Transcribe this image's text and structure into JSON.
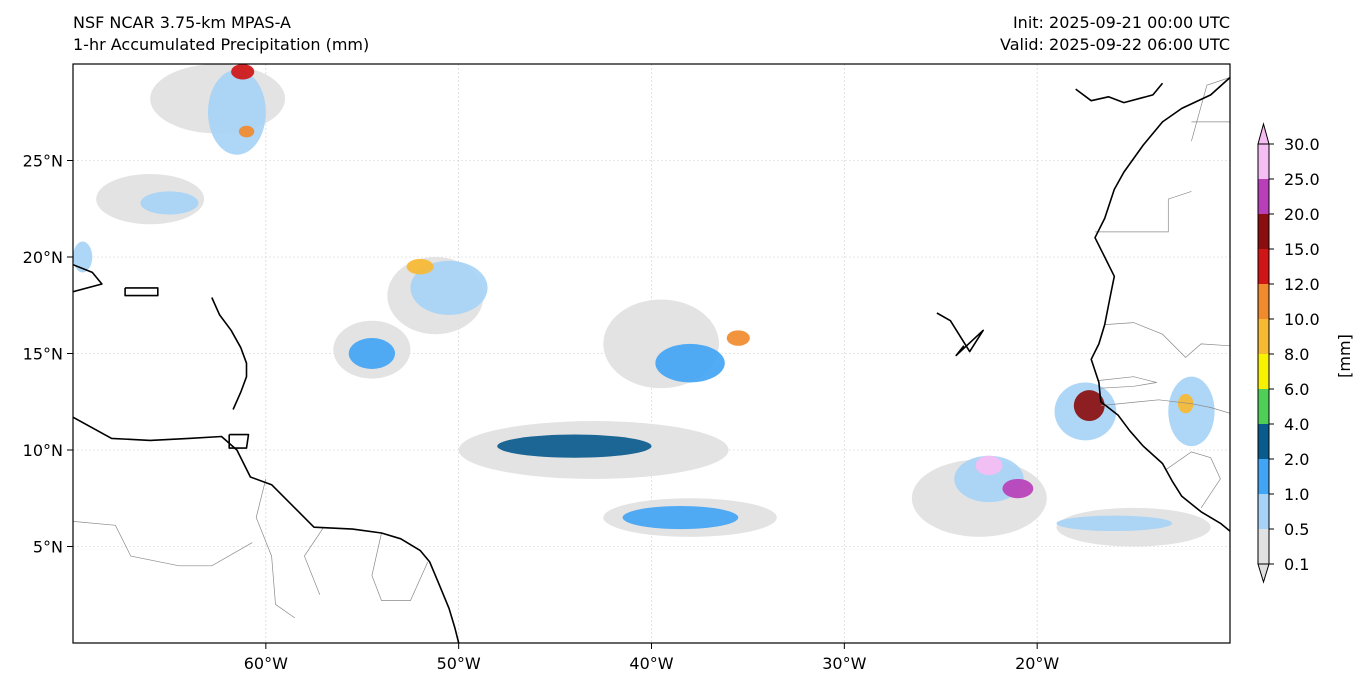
{
  "header": {
    "model": "NSF NCAR 3.75-km MPAS-A",
    "field": "1-hr Accumulated Precipitation (mm)",
    "init": "Init: 2025-09-21 00:00 UTC",
    "valid": "Valid: 2025-09-22 06:00 UTC"
  },
  "map": {
    "lon_range": [
      -70,
      -10
    ],
    "lat_range": [
      0,
      30
    ],
    "lon_ticks": [
      {
        "value": -60,
        "label": "60°W"
      },
      {
        "value": -50,
        "label": "50°W"
      },
      {
        "value": -40,
        "label": "40°W"
      },
      {
        "value": -30,
        "label": "30°W"
      },
      {
        "value": -20,
        "label": "20°W"
      }
    ],
    "lat_ticks": [
      {
        "value": 25,
        "label": "25°N"
      },
      {
        "value": 20,
        "label": "20°N"
      },
      {
        "value": 15,
        "label": "15°N"
      },
      {
        "value": 10,
        "label": "10°N"
      },
      {
        "value": 5,
        "label": "5°N"
      }
    ],
    "gridlines": true
  },
  "colorbar": {
    "unit_label": "[mm]",
    "levels": [
      {
        "label": "0.1",
        "color": "#e1e1e1"
      },
      {
        "label": "0.5",
        "color": "#a6d2f6"
      },
      {
        "label": "1.0",
        "color": "#42a4f4"
      },
      {
        "label": "2.0",
        "color": "#0a5b8d"
      },
      {
        "label": "4.0",
        "color": "#4fcf58"
      },
      {
        "label": "6.0",
        "color": "#f8f200"
      },
      {
        "label": "8.0",
        "color": "#f7b832"
      },
      {
        "label": "10.0",
        "color": "#f18a2d"
      },
      {
        "label": "12.0",
        "color": "#cf1515"
      },
      {
        "label": "15.0",
        "color": "#8a0e0e"
      },
      {
        "label": "20.0",
        "color": "#b93fb8"
      },
      {
        "label": "25.0",
        "color": "#f6bdf3"
      },
      {
        "label": "30.0",
        "color": "#f6bdf3"
      }
    ]
  },
  "precip_areas": [
    {
      "lon": -66,
      "lat": 23.0,
      "rlon": 2.8,
      "rlat": 1.3,
      "level": 0
    },
    {
      "lon": -65,
      "lat": 22.8,
      "rlon": 1.5,
      "rlat": 0.6,
      "level": 1
    },
    {
      "lon": -62.5,
      "lat": 28.2,
      "rlon": 3.5,
      "rlat": 1.8,
      "level": 0
    },
    {
      "lon": -61.5,
      "lat": 27.5,
      "rlon": 1.5,
      "rlat": 2.2,
      "level": 1
    },
    {
      "lon": -61.2,
      "lat": 29.6,
      "rlon": 0.6,
      "rlat": 0.4,
      "level": 8
    },
    {
      "lon": -61.0,
      "lat": 26.5,
      "rlon": 0.4,
      "rlat": 0.3,
      "level": 7
    },
    {
      "lon": -51.2,
      "lat": 18.0,
      "rlon": 2.5,
      "rlat": 2.0,
      "level": 0
    },
    {
      "lon": -50.5,
      "lat": 18.4,
      "rlon": 2.0,
      "rlat": 1.4,
      "level": 1
    },
    {
      "lon": -52.0,
      "lat": 19.5,
      "rlon": 0.7,
      "rlat": 0.4,
      "level": 6
    },
    {
      "lon": -54.5,
      "lat": 15.2,
      "rlon": 2.0,
      "rlat": 1.5,
      "level": 0
    },
    {
      "lon": -54.5,
      "lat": 15.0,
      "rlon": 1.2,
      "rlat": 0.8,
      "level": 2
    },
    {
      "lon": -39.5,
      "lat": 15.5,
      "rlon": 3.0,
      "rlat": 2.3,
      "level": 0
    },
    {
      "lon": -38.0,
      "lat": 14.5,
      "rlon": 1.8,
      "rlat": 1.0,
      "level": 2
    },
    {
      "lon": -35.5,
      "lat": 15.8,
      "rlon": 0.6,
      "rlat": 0.4,
      "level": 7
    },
    {
      "lon": -43.0,
      "lat": 10.0,
      "rlon": 7.0,
      "rlat": 1.5,
      "level": 0
    },
    {
      "lon": -44.0,
      "lat": 10.2,
      "rlon": 4.0,
      "rlat": 0.6,
      "level": 3
    },
    {
      "lon": -38.0,
      "lat": 6.5,
      "rlon": 4.5,
      "rlat": 1.0,
      "level": 0
    },
    {
      "lon": -38.5,
      "lat": 6.5,
      "rlon": 3.0,
      "rlat": 0.6,
      "level": 2
    },
    {
      "lon": -23.0,
      "lat": 7.5,
      "rlon": 3.5,
      "rlat": 2.0,
      "level": 0
    },
    {
      "lon": -22.5,
      "lat": 8.5,
      "rlon": 1.8,
      "rlat": 1.2,
      "level": 1
    },
    {
      "lon": -22.5,
      "lat": 9.2,
      "rlon": 0.7,
      "rlat": 0.5,
      "level": 11
    },
    {
      "lon": -21.0,
      "lat": 8.0,
      "rlon": 0.8,
      "rlat": 0.5,
      "level": 10
    },
    {
      "lon": -17.5,
      "lat": 12.0,
      "rlon": 1.6,
      "rlat": 1.5,
      "level": 1
    },
    {
      "lon": -17.3,
      "lat": 12.3,
      "rlon": 0.8,
      "rlat": 0.8,
      "level": 9
    },
    {
      "lon": -12.0,
      "lat": 12.0,
      "rlon": 1.2,
      "rlat": 1.8,
      "level": 1
    },
    {
      "lon": -12.3,
      "lat": 12.4,
      "rlon": 0.4,
      "rlat": 0.5,
      "level": 6
    },
    {
      "lon": -15.0,
      "lat": 6.0,
      "rlon": 4.0,
      "rlat": 1.0,
      "level": 0
    },
    {
      "lon": -16.0,
      "lat": 6.2,
      "rlon": 3.0,
      "rlat": 0.4,
      "level": 1
    },
    {
      "lon": -69.5,
      "lat": 20.0,
      "rlon": 0.5,
      "rlat": 0.8,
      "level": 1
    }
  ],
  "coastlines": [
    {
      "name": "africa-coast",
      "points": [
        [
          -10,
          29.3
        ],
        [
          -11,
          28.4
        ],
        [
          -12.5,
          27.7
        ],
        [
          -13.5,
          27.0
        ],
        [
          -14.5,
          25.8
        ],
        [
          -15.5,
          24.4
        ],
        [
          -16.0,
          23.5
        ],
        [
          -16.5,
          22.0
        ],
        [
          -17.0,
          21.0
        ],
        [
          -16.5,
          20.0
        ],
        [
          -16.0,
          19.0
        ],
        [
          -16.2,
          18.0
        ],
        [
          -16.5,
          16.5
        ],
        [
          -16.8,
          15.5
        ],
        [
          -17.2,
          14.7
        ],
        [
          -16.8,
          13.5
        ],
        [
          -16.7,
          12.5
        ],
        [
          -15.8,
          11.8
        ],
        [
          -15.2,
          11.0
        ],
        [
          -14.5,
          10.2
        ],
        [
          -13.5,
          9.3
        ],
        [
          -13.0,
          8.4
        ],
        [
          -12.5,
          7.6
        ],
        [
          -11.5,
          6.8
        ],
        [
          -10.5,
          6.2
        ],
        [
          -10,
          5.8
        ]
      ]
    },
    {
      "name": "south-america-coast",
      "points": [
        [
          -70,
          11.7
        ],
        [
          -68,
          10.6
        ],
        [
          -66,
          10.5
        ],
        [
          -64,
          10.6
        ],
        [
          -62.3,
          10.7
        ],
        [
          -61.5,
          10.0
        ],
        [
          -60.8,
          8.6
        ],
        [
          -59.7,
          8.2
        ],
        [
          -58.5,
          7.0
        ],
        [
          -57.5,
          6.0
        ],
        [
          -55.5,
          5.9
        ],
        [
          -54,
          5.7
        ],
        [
          -53,
          5.4
        ],
        [
          -52,
          4.8
        ],
        [
          -51.5,
          4.2
        ],
        [
          -51,
          3.0
        ],
        [
          -50.5,
          1.8
        ],
        [
          -50.2,
          0.8
        ],
        [
          -50,
          0
        ]
      ]
    },
    {
      "name": "hispaniola-coast",
      "points": [
        [
          -70,
          19.6
        ],
        [
          -69,
          19.2
        ],
        [
          -68.5,
          18.6
        ],
        [
          -70,
          18.2
        ]
      ]
    },
    {
      "name": "puerto-rico-coast",
      "points": [
        [
          -67.3,
          18.4
        ],
        [
          -65.6,
          18.4
        ],
        [
          -65.6,
          18.0
        ],
        [
          -67.3,
          18.0
        ],
        [
          -67.3,
          18.4
        ]
      ]
    },
    {
      "name": "lesser-antilles-coast",
      "points": [
        [
          -62.8,
          17.9
        ],
        [
          -62.4,
          17.0
        ],
        [
          -61.8,
          16.2
        ],
        [
          -61.3,
          15.3
        ],
        [
          -61.0,
          14.5
        ],
        [
          -61.0,
          13.8
        ],
        [
          -61.3,
          13.0
        ],
        [
          -61.7,
          12.1
        ]
      ]
    },
    {
      "name": "trinidad-coast",
      "points": [
        [
          -61.9,
          10.8
        ],
        [
          -60.9,
          10.8
        ],
        [
          -61.0,
          10.1
        ],
        [
          -61.9,
          10.1
        ],
        [
          -61.9,
          10.8
        ]
      ]
    },
    {
      "name": "cape-verde-coast",
      "points": [
        [
          -25.2,
          17.1
        ],
        [
          -24.5,
          16.7
        ],
        [
          -23.5,
          15.1
        ],
        [
          -22.8,
          16.2
        ],
        [
          -24.2,
          14.9
        ],
        [
          -23.8,
          15.4
        ]
      ]
    },
    {
      "name": "canary-islands-coast",
      "points": [
        [
          -18.0,
          28.7
        ],
        [
          -17.2,
          28.1
        ],
        [
          -16.3,
          28.3
        ],
        [
          -15.5,
          28.0
        ],
        [
          -14.0,
          28.4
        ],
        [
          -13.5,
          29.0
        ]
      ]
    }
  ],
  "borders": [
    {
      "name": "guyana-border",
      "points": [
        [
          -60,
          8.5
        ],
        [
          -60.5,
          6.5
        ],
        [
          -59.7,
          4.5
        ],
        [
          -59.5,
          2.0
        ],
        [
          -58.5,
          1.3
        ]
      ]
    },
    {
      "name": "suriname-border",
      "points": [
        [
          -57.0,
          6.0
        ],
        [
          -58.0,
          4.5
        ],
        [
          -57.2,
          2.5
        ]
      ]
    },
    {
      "name": "french-guiana-border",
      "points": [
        [
          -54.0,
          5.7
        ],
        [
          -54.5,
          3.5
        ],
        [
          -54.0,
          2.2
        ],
        [
          -52.5,
          2.2
        ],
        [
          -51.6,
          4.2
        ]
      ]
    },
    {
      "name": "brazil-venezuela-border",
      "points": [
        [
          -70,
          6.3
        ],
        [
          -67.8,
          6.1
        ],
        [
          -67,
          4.5
        ],
        [
          -64.5,
          4.0
        ],
        [
          -62.8,
          4.0
        ],
        [
          -60.7,
          5.2
        ]
      ]
    },
    {
      "name": "morocco-algeria-border",
      "points": [
        [
          -12.0,
          23.4
        ],
        [
          -13.2,
          23.0
        ],
        [
          -13.2,
          21.3
        ],
        [
          -17.0,
          21.3
        ]
      ]
    },
    {
      "name": "mauritania-east-border",
      "points": [
        [
          -12.0,
          26.0
        ],
        [
          -11.2,
          28.9
        ],
        [
          -10.0,
          29.3
        ]
      ]
    },
    {
      "name": "mauritania-mali-border",
      "points": [
        [
          -10.0,
          25.0
        ],
        [
          -10.0,
          27.0
        ],
        [
          -12.0,
          27.0
        ]
      ]
    },
    {
      "name": "senegal-mauritania-border",
      "points": [
        [
          -16.5,
          16.5
        ],
        [
          -15.0,
          16.6
        ],
        [
          -13.5,
          16.0
        ],
        [
          -12.3,
          14.8
        ],
        [
          -11.5,
          15.5
        ],
        [
          -10.0,
          15.4
        ]
      ]
    },
    {
      "name": "gambia-border",
      "points": [
        [
          -16.8,
          13.6
        ],
        [
          -15.0,
          13.8
        ],
        [
          -13.8,
          13.5
        ],
        [
          -15.0,
          13.3
        ],
        [
          -16.7,
          13.2
        ]
      ]
    },
    {
      "name": "guinea-border",
      "points": [
        [
          -16.7,
          12.3
        ],
        [
          -13.7,
          12.6
        ],
        [
          -12.0,
          12.4
        ],
        [
          -11.0,
          12.2
        ],
        [
          -10.0,
          11.9
        ]
      ]
    },
    {
      "name": "guinea-sierraleone-border",
      "points": [
        [
          -13.3,
          9.0
        ],
        [
          -12.0,
          9.9
        ],
        [
          -11.0,
          9.6
        ],
        [
          -10.5,
          8.5
        ],
        [
          -11.5,
          7.0
        ]
      ]
    }
  ]
}
